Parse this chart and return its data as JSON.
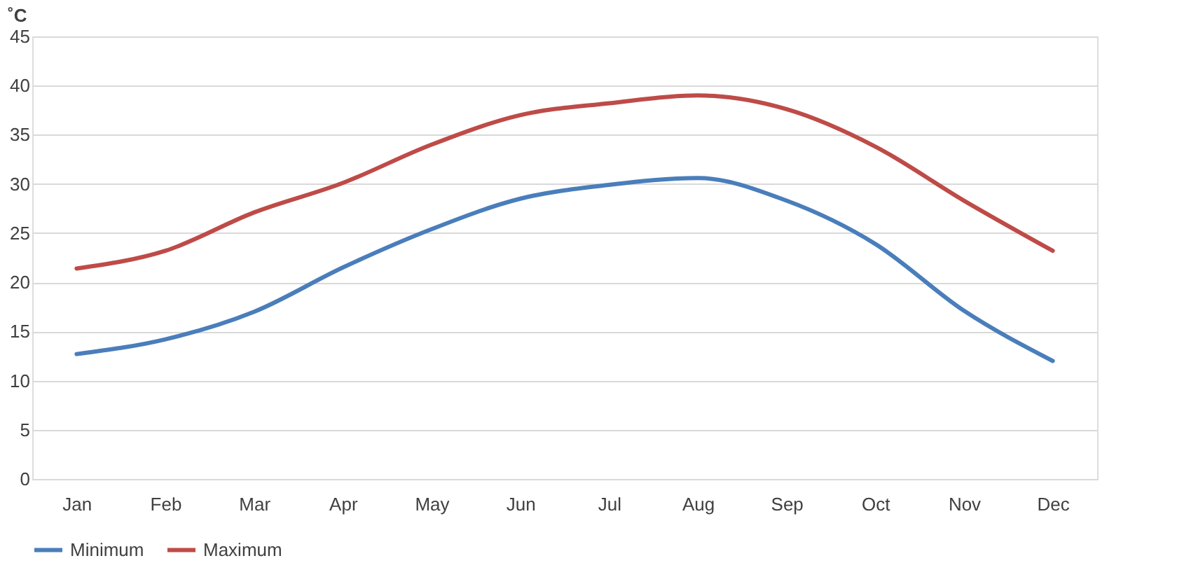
{
  "chart_data": {
    "type": "line",
    "ylabel": "˚C",
    "categories": [
      "Jan",
      "Feb",
      "Mar",
      "Apr",
      "May",
      "Jun",
      "Jul",
      "Aug",
      "Sep",
      "Oct",
      "Nov",
      "Dec"
    ],
    "series": [
      {
        "name": "Minimum",
        "color": "#4a7ebb",
        "values": [
          12.7,
          14.2,
          17.0,
          21.5,
          25.4,
          28.5,
          29.9,
          30.6,
          28.3,
          23.9,
          17.1,
          12.0
        ]
      },
      {
        "name": "Maximum",
        "color": "#be4b48",
        "values": [
          21.4,
          23.2,
          27.1,
          30.1,
          34.0,
          37.0,
          38.2,
          39.0,
          37.6,
          33.8,
          28.3,
          23.2
        ]
      }
    ],
    "ylim": [
      0,
      45
    ],
    "yticks": [
      0,
      5,
      10,
      15,
      20,
      25,
      30,
      35,
      40,
      45
    ],
    "grid": "y",
    "legend": "bottom",
    "marker": "none",
    "line_style": "solid"
  }
}
